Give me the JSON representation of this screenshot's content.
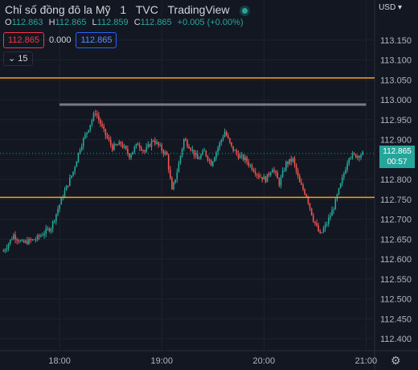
{
  "header": {
    "title": "Chỉ số đồng đô la Mỹ",
    "interval": "1",
    "exchange": "TVC",
    "source": "TradingView",
    "status_color": "#26a69a"
  },
  "ohlc": {
    "o_label": "O",
    "o": "112.863",
    "h_label": "H",
    "h": "112.865",
    "l_label": "L",
    "l": "112.859",
    "c_label": "C",
    "c": "112.865",
    "change": "+0.005 (+0.00%)"
  },
  "trade": {
    "sell": "112.865",
    "spread": "0.000",
    "buy": "112.865"
  },
  "indicator_count": "15",
  "currency": "USD",
  "last_price": {
    "value": "112.865",
    "countdown": "00:57"
  },
  "colors": {
    "background": "#131722",
    "up": "#26a69a",
    "down": "#ef5350",
    "level": "#f7a21b",
    "trendline": "#787b86",
    "grid": "#1e222d"
  },
  "chart_data": {
    "type": "candlestick",
    "y_ticks": [
      "113.150",
      "113.100",
      "113.050",
      "113.000",
      "112.950",
      "112.900",
      "112.850",
      "112.800",
      "112.750",
      "112.700",
      "112.650",
      "112.600",
      "112.550",
      "112.500",
      "112.450",
      "112.400"
    ],
    "x_ticks": [
      "18:00",
      "19:00",
      "20:00",
      "21:00"
    ],
    "ylim": [
      112.37,
      113.19
    ],
    "horizontal_levels": [
      113.055,
      112.755
    ],
    "trendline": {
      "start": "18:00",
      "end": "21:00",
      "value": 112.988
    },
    "close_path": [
      [
        "17:27",
        112.62
      ],
      [
        "17:33",
        112.66
      ],
      [
        "17:38",
        112.64
      ],
      [
        "17:46",
        112.65
      ],
      [
        "17:55",
        112.68
      ],
      [
        "18:02",
        112.76
      ],
      [
        "18:08",
        112.82
      ],
      [
        "18:12",
        112.88
      ],
      [
        "18:16",
        112.92
      ],
      [
        "18:21",
        112.97
      ],
      [
        "18:26",
        112.92
      ],
      [
        "18:31",
        112.88
      ],
      [
        "18:36",
        112.89
      ],
      [
        "18:41",
        112.86
      ],
      [
        "18:46",
        112.89
      ],
      [
        "18:50",
        112.87
      ],
      [
        "18:55",
        112.9
      ],
      [
        "18:59",
        112.88
      ],
      [
        "19:03",
        112.86
      ],
      [
        "19:06",
        112.77
      ],
      [
        "19:09",
        112.82
      ],
      [
        "19:13",
        112.9
      ],
      [
        "19:17",
        112.88
      ],
      [
        "19:21",
        112.85
      ],
      [
        "19:25",
        112.87
      ],
      [
        "19:29",
        112.84
      ],
      [
        "19:33",
        112.88
      ],
      [
        "19:37",
        112.92
      ],
      [
        "19:41",
        112.88
      ],
      [
        "19:45",
        112.86
      ],
      [
        "19:49",
        112.85
      ],
      [
        "19:53",
        112.83
      ],
      [
        "19:57",
        112.81
      ],
      [
        "20:01",
        112.8
      ],
      [
        "20:05",
        112.83
      ],
      [
        "20:09",
        112.79
      ],
      [
        "20:13",
        112.84
      ],
      [
        "20:17",
        112.85
      ],
      [
        "20:21",
        112.79
      ],
      [
        "20:25",
        112.76
      ],
      [
        "20:29",
        112.7
      ],
      [
        "20:33",
        112.66
      ],
      [
        "20:37",
        112.69
      ],
      [
        "20:41",
        112.73
      ],
      [
        "20:46",
        112.8
      ],
      [
        "20:50",
        112.86
      ],
      [
        "20:55",
        112.86
      ],
      [
        "20:58",
        112.865
      ]
    ]
  }
}
